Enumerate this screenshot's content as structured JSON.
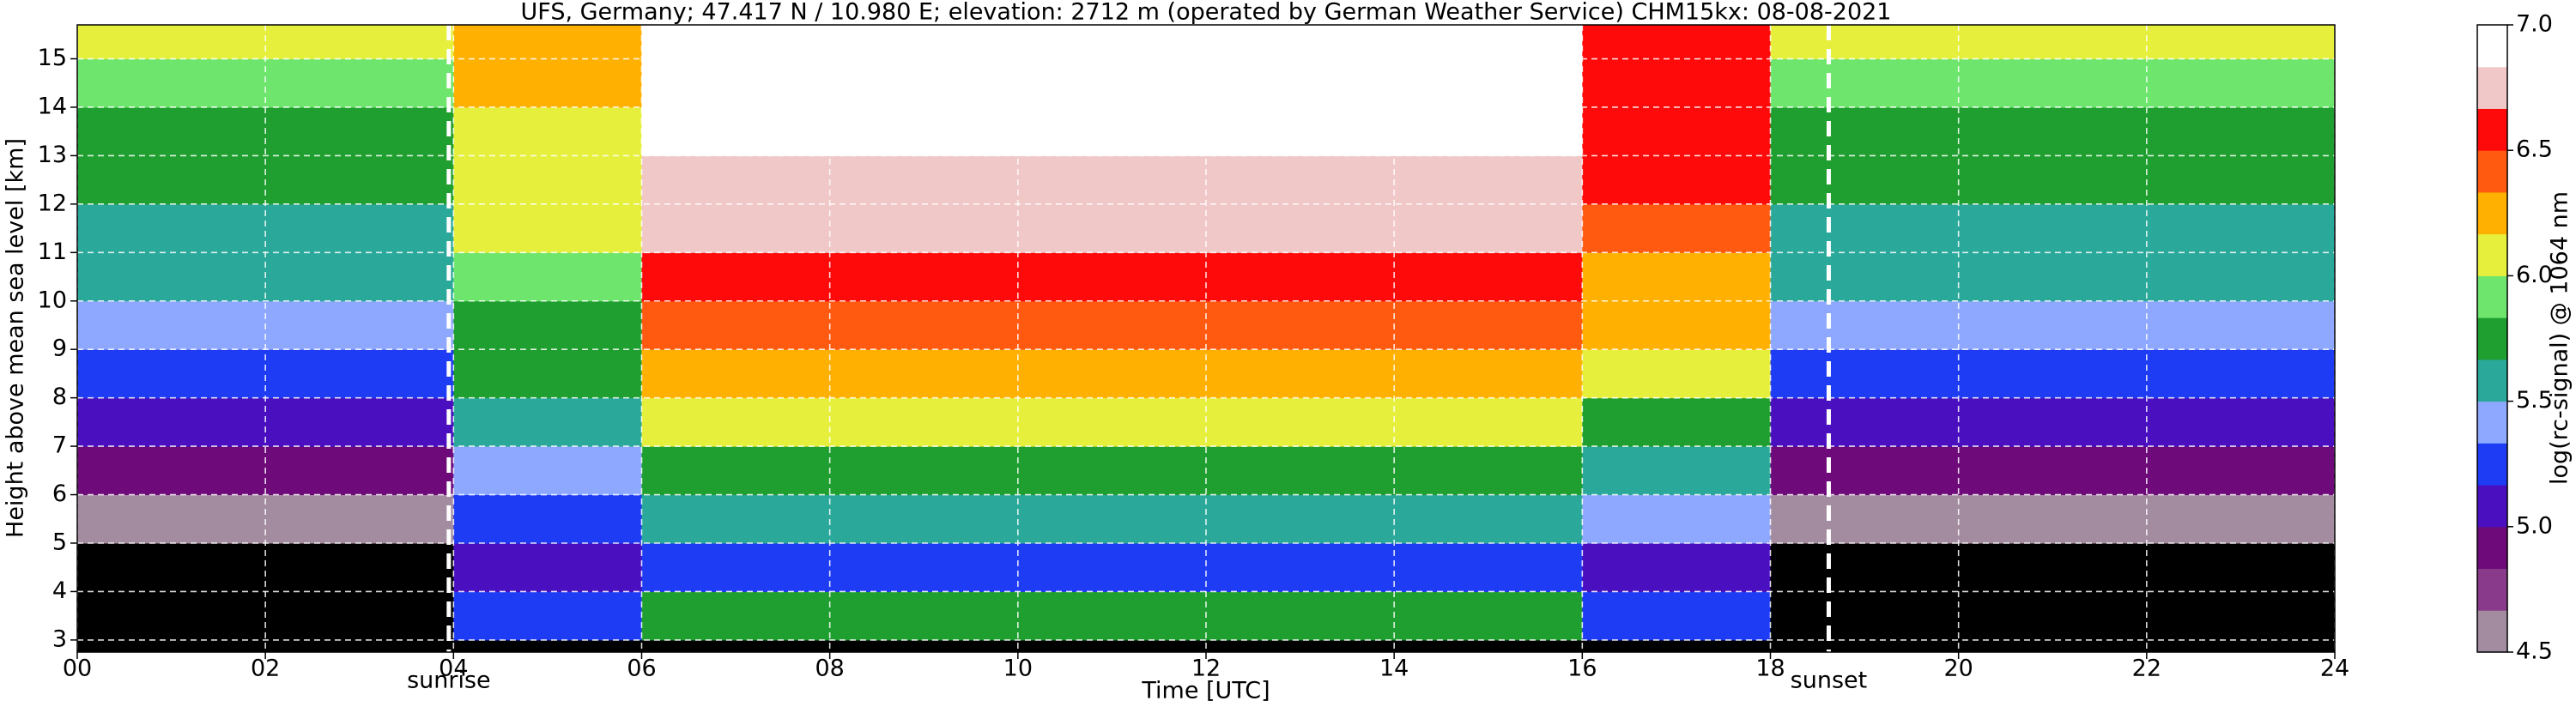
{
  "chart_data": {
    "type": "heatmap",
    "title": "UFS, Germany; 47.417 N / 10.980 E; elevation: 2712 m  (operated by German Weather Service)    CHM15kx: 08-08-2021",
    "xlabel": "Time [UTC]",
    "ylabel": "Height above mean sea level [km]",
    "xlim": [
      0,
      24
    ],
    "ylim": [
      2.75,
      15.7
    ],
    "xticks": [
      {
        "value": 0,
        "label": "00"
      },
      {
        "value": 2,
        "label": "02"
      },
      {
        "value": 4,
        "label": "04"
      },
      {
        "value": 6,
        "label": "06"
      },
      {
        "value": 8,
        "label": "08"
      },
      10,
      12,
      14,
      16,
      18,
      20,
      22,
      24
    ],
    "yticks": [
      3,
      4,
      5,
      6,
      7,
      8,
      9,
      10,
      11,
      12,
      13,
      14,
      15
    ],
    "grid": true,
    "xbins": [
      0,
      2,
      4,
      6,
      8,
      10,
      12,
      14,
      16,
      18,
      20,
      22,
      24
    ],
    "ybins": [
      2.75,
      3,
      4,
      5,
      6,
      7,
      8,
      9,
      10,
      11,
      12,
      13,
      14,
      15,
      15.7
    ],
    "z": [
      [
        4.3,
        4.3,
        4.3,
        4.3,
        4.3,
        4.3,
        4.3,
        4.3,
        4.3,
        4.3,
        4.3,
        4.3
      ],
      [
        4.3,
        4.3,
        5.2,
        5.7,
        5.7,
        5.7,
        5.8,
        5.7,
        5.3,
        4.3,
        4.3,
        4.3
      ],
      [
        4.3,
        4.3,
        5.0,
        5.3,
        5.3,
        5.3,
        5.3,
        5.3,
        5.1,
        4.3,
        4.3,
        4.3
      ],
      [
        4.6,
        4.6,
        5.2,
        5.5,
        5.5,
        5.5,
        5.5,
        5.5,
        5.4,
        4.6,
        4.6,
        4.6
      ],
      [
        4.9,
        4.9,
        5.4,
        5.7,
        5.7,
        5.7,
        5.7,
        5.7,
        5.6,
        4.9,
        4.9,
        4.9
      ],
      [
        5.1,
        5.1,
        5.6,
        6.0,
        6.0,
        6.0,
        6.0,
        6.0,
        5.8,
        5.1,
        5.1,
        5.1
      ],
      [
        5.3,
        5.3,
        5.7,
        6.2,
        6.2,
        6.2,
        6.2,
        6.2,
        6.0,
        5.3,
        5.3,
        5.3
      ],
      [
        5.4,
        5.4,
        5.8,
        6.4,
        6.4,
        6.4,
        6.4,
        6.4,
        6.2,
        5.4,
        5.4,
        5.4
      ],
      [
        5.5,
        5.5,
        5.9,
        6.5,
        6.5,
        6.5,
        6.5,
        6.5,
        6.3,
        5.5,
        5.5,
        5.5
      ],
      [
        5.6,
        5.6,
        6.0,
        6.7,
        6.7,
        6.7,
        6.7,
        6.7,
        6.4,
        5.6,
        5.6,
        5.6
      ],
      [
        5.7,
        5.7,
        6.1,
        6.8,
        6.8,
        6.8,
        6.8,
        6.8,
        6.5,
        5.7,
        5.7,
        5.7
      ],
      [
        5.8,
        5.8,
        6.1,
        6.9,
        6.9,
        6.9,
        6.9,
        6.9,
        6.5,
        5.8,
        5.8,
        5.8
      ],
      [
        5.9,
        5.9,
        6.2,
        7.0,
        7.0,
        7.0,
        7.0,
        7.0,
        6.6,
        5.9,
        5.9,
        5.9
      ],
      [
        6.0,
        6.0,
        6.2,
        7.0,
        7.0,
        7.0,
        7.0,
        7.0,
        6.6,
        6.0,
        6.0,
        6.0
      ]
    ],
    "annotations": [
      {
        "x": 3.95,
        "label": "sunrise"
      },
      {
        "x": 18.62,
        "label": "sunset"
      }
    ],
    "colorbar": {
      "label": "log(rc-signal) @ 1064 nm",
      "lim": [
        4.5,
        7.0
      ],
      "ticks": [
        4.5,
        {
          "value": 5,
          "label": "5.0"
        },
        5.5,
        {
          "value": 6,
          "label": "6.0"
        },
        6.5,
        {
          "value": 7,
          "label": "7.0"
        }
      ],
      "colormap": [
        "#a48ca0",
        "#8a3a8a",
        "#6e0a7a",
        "#4a10c0",
        "#1f3cf5",
        "#8fa8ff",
        "#2aa89a",
        "#1f9f2f",
        "#6ee66e",
        "#e6f03c",
        "#ffb000",
        "#ff5a10",
        "#ff0a0a",
        "#f0c8c8",
        "#ffffff"
      ],
      "under_color": "#000000"
    }
  }
}
